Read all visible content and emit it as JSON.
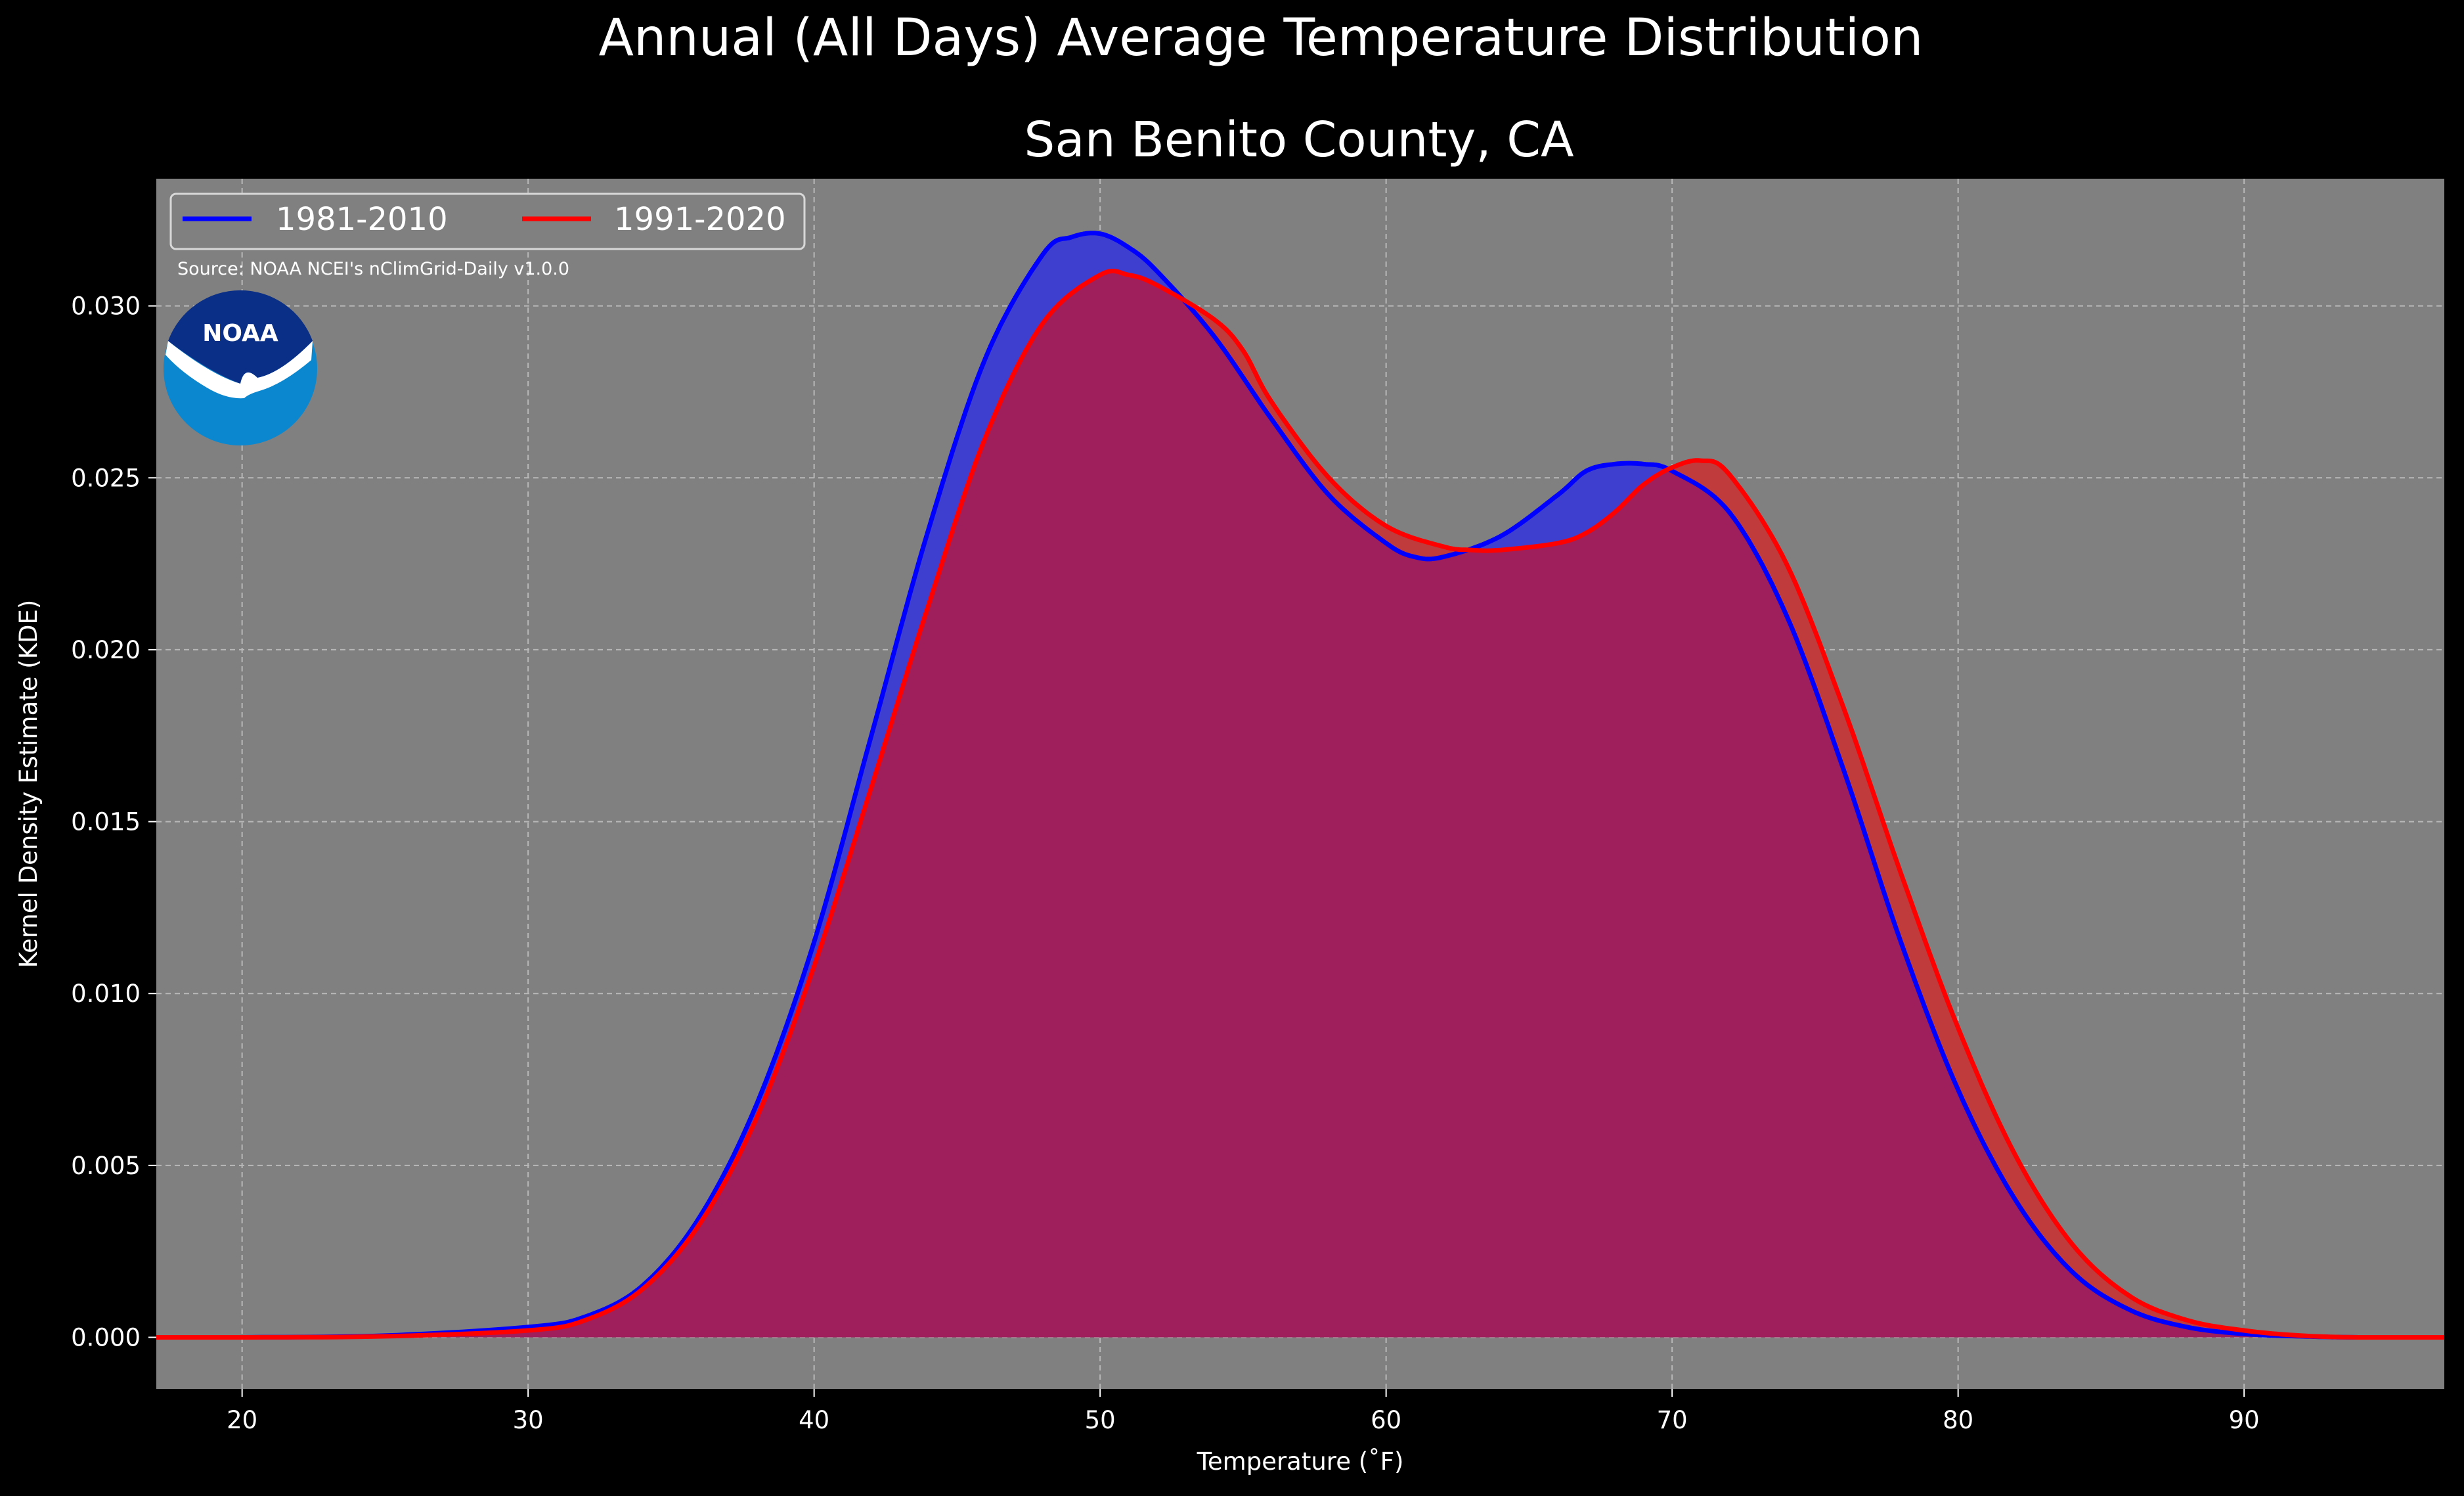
{
  "figure": {
    "suptitle": "Annual (All Days) Average Temperature Distribution",
    "title": "San Benito County, CA",
    "source": "Source: NOAA NCEI's nClimGrid-Daily v1.0.0",
    "logo_text": "NOAA",
    "colors": {
      "background": "#000000",
      "plot_bg": "#808080",
      "series_1981": "#0000ff",
      "series_1991": "#ff0000",
      "fill_1981": "#3f3fcf",
      "fill_overlap": "#9e1f5c",
      "fill_1991": "#c03b3b",
      "logo_dark": "#0a2f87",
      "logo_light": "#0a87cf"
    },
    "logo_icon": "noaa-logo"
  },
  "chart_data": {
    "type": "area",
    "title": "San Benito County, CA",
    "suptitle": "Annual (All Days) Average Temperature Distribution",
    "xlabel": "Temperature (˚F)",
    "ylabel": "Kernel Density Estimate (KDE)",
    "xlim": [
      17,
      97
    ],
    "ylim": [
      -0.0015,
      0.0337
    ],
    "xticks": [
      20,
      30,
      40,
      50,
      60,
      70,
      80,
      90
    ],
    "xtick_labels": [
      "20",
      "30",
      "40",
      "50",
      "60",
      "70",
      "80",
      "90"
    ],
    "yticks": [
      0,
      0.005,
      0.01,
      0.015,
      0.02,
      0.025,
      0.03
    ],
    "ytick_labels": [
      "0.000",
      "0.005",
      "0.010",
      "0.015",
      "0.020",
      "0.025",
      "0.030"
    ],
    "grid": true,
    "legend_position": "top-left",
    "series": [
      {
        "name": "1981-2010",
        "color": "#0000ff",
        "x": [
          17,
          20,
          25,
          30,
          32,
          34,
          36,
          38,
          40,
          42,
          44,
          46,
          48,
          49,
          50,
          51,
          52,
          54,
          56,
          58,
          60,
          61,
          62,
          64,
          66,
          67,
          68,
          69,
          70,
          72,
          74,
          76,
          78,
          80,
          82,
          84,
          86,
          88,
          90,
          92,
          94,
          97
        ],
        "y": [
          0.0,
          0.0,
          5e-05,
          0.0003,
          0.0006,
          0.0015,
          0.0035,
          0.0068,
          0.0115,
          0.0175,
          0.0235,
          0.0285,
          0.0315,
          0.032,
          0.0321,
          0.0317,
          0.031,
          0.0291,
          0.0267,
          0.0245,
          0.0231,
          0.0227,
          0.0227,
          0.0233,
          0.0245,
          0.0252,
          0.0254,
          0.0254,
          0.0252,
          0.024,
          0.021,
          0.0165,
          0.0115,
          0.0072,
          0.004,
          0.0019,
          0.0008,
          0.0003,
          0.0001,
          3e-05,
          0.0,
          0.0
        ]
      },
      {
        "name": "1991-2020",
        "color": "#ff0000",
        "x": [
          17,
          20,
          25,
          30,
          32,
          34,
          36,
          38,
          40,
          42,
          44,
          46,
          48,
          50,
          51,
          52,
          54,
          55,
          56,
          58,
          60,
          62,
          63,
          64,
          66,
          67,
          68,
          69,
          70,
          71,
          72,
          74,
          76,
          78,
          80,
          82,
          84,
          86,
          88,
          90,
          92,
          94,
          97
        ],
        "y": [
          0.0,
          0.0,
          3e-05,
          0.0002,
          0.0005,
          0.0014,
          0.0033,
          0.0064,
          0.0108,
          0.016,
          0.0213,
          0.0262,
          0.0295,
          0.0309,
          0.0309,
          0.0306,
          0.0296,
          0.0287,
          0.0272,
          0.025,
          0.0236,
          0.023,
          0.0229,
          0.0229,
          0.0231,
          0.0234,
          0.024,
          0.0248,
          0.0253,
          0.0255,
          0.0251,
          0.0225,
          0.0183,
          0.0135,
          0.009,
          0.0053,
          0.0027,
          0.0012,
          0.0005,
          0.0002,
          5e-05,
          0.0,
          0.0
        ]
      }
    ]
  }
}
